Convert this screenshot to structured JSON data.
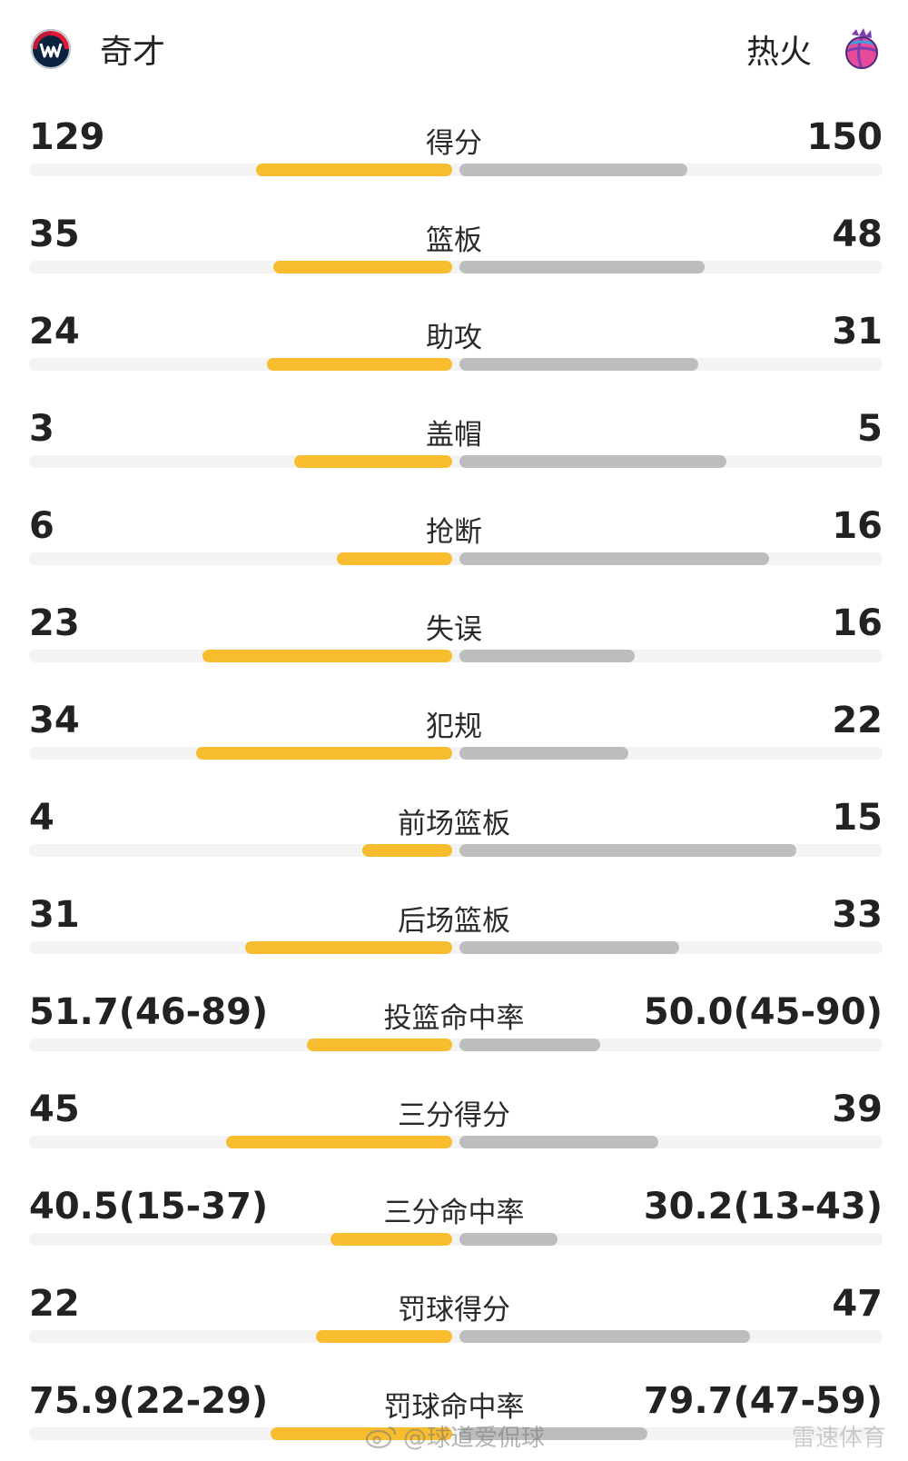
{
  "teams": {
    "left": {
      "name": "奇才",
      "logo_icon": "wizards-logo-icon"
    },
    "right": {
      "name": "热火",
      "logo_icon": "heat-logo-icon"
    }
  },
  "colors": {
    "left_bar": "#f7bd2e",
    "right_bar": "#bdbdbd",
    "track": "#f3f3f3"
  },
  "stats": [
    {
      "label": "得分",
      "left": "129",
      "right": "150",
      "left_fill": 0.46,
      "right_fill": 0.535
    },
    {
      "label": "篮板",
      "left": "35",
      "right": "48",
      "left_fill": 0.42,
      "right_fill": 0.575
    },
    {
      "label": "助攻",
      "left": "24",
      "right": "31",
      "left_fill": 0.435,
      "right_fill": 0.56
    },
    {
      "label": "盖帽",
      "left": "3",
      "right": "5",
      "left_fill": 0.37,
      "right_fill": 0.625
    },
    {
      "label": "抢断",
      "left": "6",
      "right": "16",
      "left_fill": 0.27,
      "right_fill": 0.725
    },
    {
      "label": "失误",
      "left": "23",
      "right": "16",
      "left_fill": 0.585,
      "right_fill": 0.41
    },
    {
      "label": "犯规",
      "left": "34",
      "right": "22",
      "left_fill": 0.6,
      "right_fill": 0.395
    },
    {
      "label": "前场篮板",
      "left": "4",
      "right": "15",
      "left_fill": 0.21,
      "right_fill": 0.79
    },
    {
      "label": "后场篮板",
      "left": "31",
      "right": "33",
      "left_fill": 0.485,
      "right_fill": 0.515
    },
    {
      "label": "投篮命中率",
      "left": "51.7(46-89)",
      "right": "50.0(45-90)",
      "left_fill": 0.34,
      "right_fill": 0.33
    },
    {
      "label": "三分得分",
      "left": "45",
      "right": "39",
      "left_fill": 0.53,
      "right_fill": 0.465
    },
    {
      "label": "三分命中率",
      "left": "40.5(15-37)",
      "right": "30.2(13-43)",
      "left_fill": 0.285,
      "right_fill": 0.23
    },
    {
      "label": "罚球得分",
      "left": "22",
      "right": "47",
      "left_fill": 0.32,
      "right_fill": 0.68
    },
    {
      "label": "罚球命中率",
      "left": "75.9(22-29)",
      "right": "79.7(47-59)",
      "left_fill": 0.425,
      "right_fill": 0.44
    }
  ],
  "watermark": {
    "text": "@球道爱侃球",
    "icon": "weibo-icon",
    "text2": "雷速体育"
  }
}
